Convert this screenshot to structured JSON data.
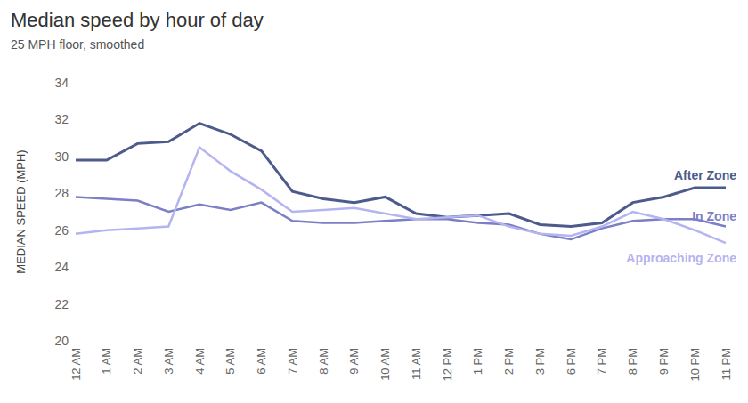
{
  "chart_data": {
    "type": "line",
    "title": "Median speed by hour of day",
    "subtitle": "25 MPH floor, smoothed",
    "y_label": "MEDIAN SPEED (MPH)",
    "categories": [
      "12 AM",
      "1 AM",
      "2 AM",
      "3 AM",
      "4 AM",
      "5 AM",
      "6 AM",
      "7 AM",
      "8 AM",
      "9 AM",
      "10 AM",
      "11 AM",
      "12 PM",
      "1 PM",
      "2 PM",
      "3 PM",
      "6 PM",
      "7 PM",
      "8 PM",
      "9 PM",
      "10 PM",
      "11 PM"
    ],
    "series": [
      {
        "name": "After Zone",
        "color": "#4c5a8c",
        "values": [
          29.8,
          29.8,
          30.7,
          30.8,
          31.8,
          31.2,
          30.3,
          28.1,
          27.7,
          27.5,
          27.8,
          26.9,
          26.7,
          26.8,
          26.9,
          26.3,
          26.2,
          26.4,
          27.5,
          27.8,
          28.3,
          28.3
        ]
      },
      {
        "name": "In Zone",
        "color": "#7b7fc6",
        "values": [
          27.8,
          27.7,
          27.6,
          27.0,
          27.4,
          27.1,
          27.5,
          26.5,
          26.4,
          26.4,
          26.5,
          26.6,
          26.6,
          26.4,
          26.3,
          25.8,
          25.5,
          26.1,
          26.5,
          26.6,
          26.6,
          26.2
        ]
      },
      {
        "name": "Approaching Zone",
        "color": "#b4b4f0",
        "values": [
          25.8,
          26.0,
          26.1,
          26.2,
          30.5,
          29.2,
          28.2,
          27.0,
          27.1,
          27.2,
          26.9,
          26.6,
          26.7,
          26.8,
          26.2,
          25.8,
          25.7,
          26.2,
          27.0,
          26.6,
          26.0,
          25.3
        ]
      }
    ],
    "ylim": [
      20,
      34
    ],
    "yticks": [
      20,
      22,
      24,
      26,
      28,
      30,
      32,
      34
    ],
    "grid": false
  }
}
